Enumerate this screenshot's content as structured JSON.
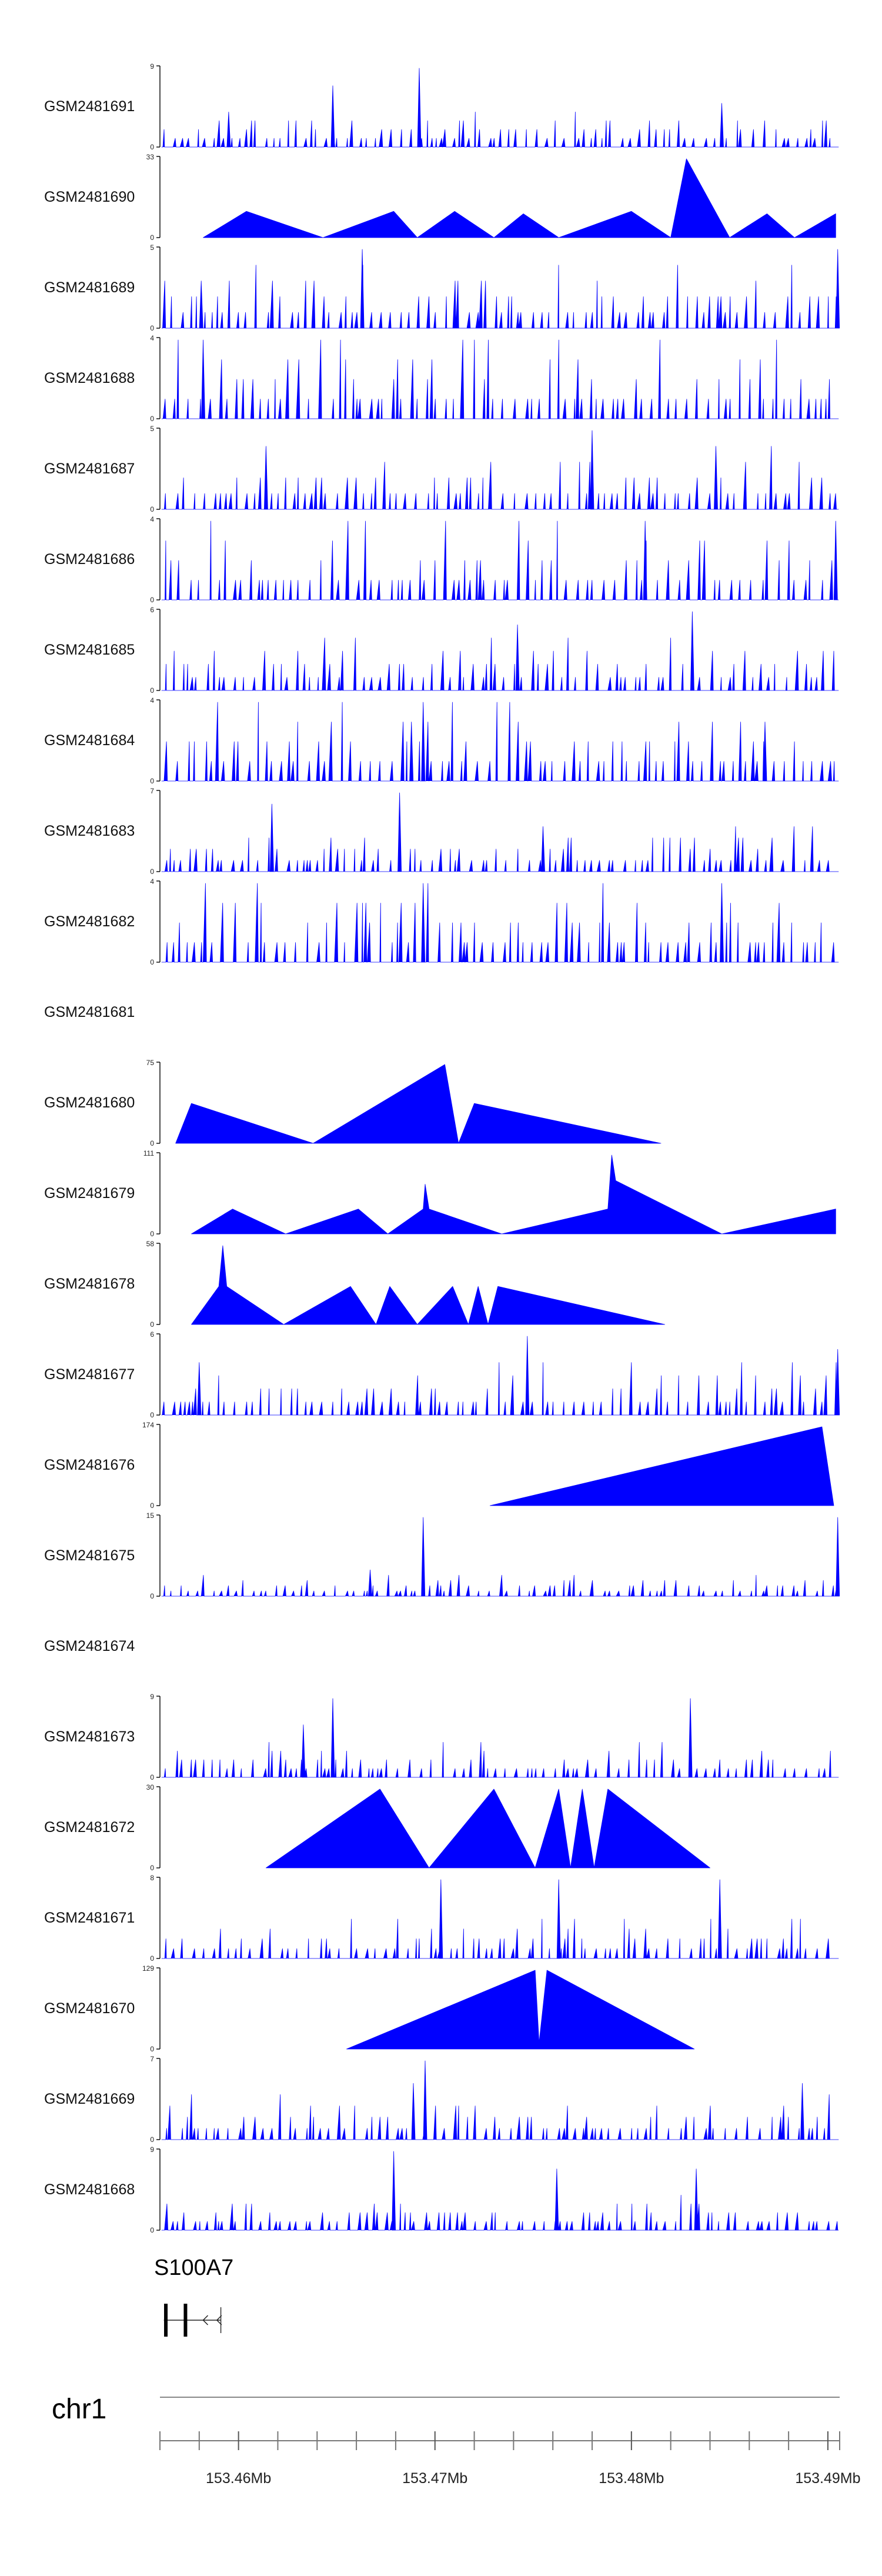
{
  "chart_data": {
    "type": "area",
    "title": "",
    "region": {
      "chromosome": "chr1",
      "start": 153456000,
      "end": 153490600,
      "unit": "bp"
    },
    "fill_color": "#0000ff",
    "tracks": [
      {
        "name": "GSM2481691",
        "ymax": "9",
        "ymin": "0",
        "ymax_value": 9,
        "pattern": "spiky",
        "peaks": [
          {
            "pos": 153469200,
            "value": 9
          },
          {
            "pos": 153464800,
            "value": 7
          },
          {
            "pos": 153459500,
            "value": 4
          },
          {
            "pos": 153484600,
            "value": 5
          }
        ]
      },
      {
        "name": "GSM2481690",
        "ymax": "33",
        "ymin": "0",
        "ymax_value": 33,
        "pattern": "triangles",
        "peaks": [
          {
            "pos": 153458200,
            "value": 0
          },
          {
            "pos": 153460400,
            "value": 11
          },
          {
            "pos": 153464300,
            "value": 0
          },
          {
            "pos": 153467900,
            "value": 11
          },
          {
            "pos": 153469100,
            "value": 0
          },
          {
            "pos": 153471000,
            "value": 11
          },
          {
            "pos": 153473000,
            "value": 0
          },
          {
            "pos": 153474500,
            "value": 10
          },
          {
            "pos": 153476300,
            "value": 0
          },
          {
            "pos": 153480000,
            "value": 11
          },
          {
            "pos": 153482000,
            "value": 0
          },
          {
            "pos": 153482800,
            "value": 33
          },
          {
            "pos": 153485000,
            "value": 0
          },
          {
            "pos": 153486900,
            "value": 10
          },
          {
            "pos": 153488300,
            "value": 0
          },
          {
            "pos": 153490400,
            "value": 10
          }
        ]
      },
      {
        "name": "GSM2481689",
        "ymax": "5",
        "ymin": "0",
        "ymax_value": 5,
        "pattern": "spiky",
        "peaks": [
          {
            "pos": 153466300,
            "value": 5
          },
          {
            "pos": 153490500,
            "value": 5
          },
          {
            "pos": 153458100,
            "value": 3
          }
        ]
      },
      {
        "name": "GSM2481688",
        "ymax": "4",
        "ymin": "0",
        "ymax_value": 4,
        "pattern": "spiky",
        "peaks": [
          {
            "pos": 153458200,
            "value": 4
          }
        ]
      },
      {
        "name": "GSM2481687",
        "ymax": "5",
        "ymin": "0",
        "ymax_value": 5,
        "pattern": "spiky",
        "peaks": [
          {
            "pos": 153478000,
            "value": 5
          },
          {
            "pos": 153461400,
            "value": 4
          },
          {
            "pos": 153484300,
            "value": 4
          }
        ]
      },
      {
        "name": "GSM2481686",
        "ymax": "4",
        "ymin": "0",
        "ymax_value": 4,
        "pattern": "spiky",
        "peaks": [
          {
            "pos": 153480700,
            "value": 4
          },
          {
            "pos": 153490400,
            "value": 4
          }
        ]
      },
      {
        "name": "GSM2481685",
        "ymax": "6",
        "ymin": "0",
        "ymax_value": 6,
        "pattern": "spiky",
        "peaks": [
          {
            "pos": 153483100,
            "value": 6
          },
          {
            "pos": 153474200,
            "value": 5
          }
        ]
      },
      {
        "name": "GSM2481684",
        "ymax": "4",
        "ymin": "0",
        "ymax_value": 4,
        "pattern": "spiky",
        "peaks": [
          {
            "pos": 153469400,
            "value": 4
          },
          {
            "pos": 153468800,
            "value": 3
          },
          {
            "pos": 153486800,
            "value": 3
          }
        ]
      },
      {
        "name": "GSM2481683",
        "ymax": "7",
        "ymin": "0",
        "ymax_value": 7,
        "pattern": "spiky",
        "peaks": [
          {
            "pos": 153461700,
            "value": 6
          },
          {
            "pos": 153468200,
            "value": 7
          },
          {
            "pos": 153475500,
            "value": 4
          }
        ]
      },
      {
        "name": "GSM2481682",
        "ymax": "4",
        "ymin": "0",
        "ymax_value": 4,
        "pattern": "spiky",
        "peaks": [
          {
            "pos": 153469400,
            "value": 4
          },
          {
            "pos": 153484600,
            "value": 4
          }
        ]
      },
      {
        "name": "GSM2481681",
        "ymax": "",
        "ymin": "",
        "ymax_value": 0,
        "pattern": "empty",
        "peaks": []
      },
      {
        "name": "GSM2481680",
        "ymax": "75",
        "ymin": "0",
        "ymax_value": 75,
        "pattern": "triangles",
        "peaks": [
          {
            "pos": 153456800,
            "value": 0
          },
          {
            "pos": 153457600,
            "value": 38
          },
          {
            "pos": 153463800,
            "value": 0
          },
          {
            "pos": 153470500,
            "value": 75
          },
          {
            "pos": 153471200,
            "value": 0
          },
          {
            "pos": 153472000,
            "value": 38
          },
          {
            "pos": 153481500,
            "value": 0
          }
        ]
      },
      {
        "name": "GSM2481679",
        "ymax": "111",
        "ymin": "0",
        "ymax_value": 111,
        "pattern": "triangles",
        "peaks": [
          {
            "pos": 153457600,
            "value": 0
          },
          {
            "pos": 153459700,
            "value": 35
          },
          {
            "pos": 153462400,
            "value": 0
          },
          {
            "pos": 153466100,
            "value": 35
          },
          {
            "pos": 153467600,
            "value": 0
          },
          {
            "pos": 153469400,
            "value": 35
          },
          {
            "pos": 153469500,
            "value": 70
          },
          {
            "pos": 153469700,
            "value": 35
          },
          {
            "pos": 153473400,
            "value": 0
          },
          {
            "pos": 153478800,
            "value": 35
          },
          {
            "pos": 153479000,
            "value": 111
          },
          {
            "pos": 153479200,
            "value": 75
          },
          {
            "pos": 153484600,
            "value": 0
          },
          {
            "pos": 153490400,
            "value": 35
          }
        ]
      },
      {
        "name": "GSM2481678",
        "ymax": "58",
        "ymin": "0",
        "ymax_value": 58,
        "pattern": "triangles",
        "peaks": [
          {
            "pos": 153457600,
            "value": 0
          },
          {
            "pos": 153459000,
            "value": 28
          },
          {
            "pos": 153459200,
            "value": 58
          },
          {
            "pos": 153459400,
            "value": 28
          },
          {
            "pos": 153462300,
            "value": 0
          },
          {
            "pos": 153465700,
            "value": 28
          },
          {
            "pos": 153467000,
            "value": 0
          },
          {
            "pos": 153467700,
            "value": 28
          },
          {
            "pos": 153469100,
            "value": 0
          },
          {
            "pos": 153470900,
            "value": 28
          },
          {
            "pos": 153471700,
            "value": 0
          },
          {
            "pos": 153472200,
            "value": 28
          },
          {
            "pos": 153472700,
            "value": 0
          },
          {
            "pos": 153473200,
            "value": 28
          },
          {
            "pos": 153481700,
            "value": 0
          }
        ]
      },
      {
        "name": "GSM2481677",
        "ymax": "6",
        "ymin": "0",
        "ymax_value": 6,
        "pattern": "spiky",
        "peaks": [
          {
            "pos": 153474700,
            "value": 6
          },
          {
            "pos": 153490500,
            "value": 5
          },
          {
            "pos": 153458000,
            "value": 4
          }
        ]
      },
      {
        "name": "GSM2481676",
        "ymax": "174",
        "ymin": "0",
        "ymax_value": 174,
        "pattern": "triangles",
        "peaks": [
          {
            "pos": 153472800,
            "value": 0
          },
          {
            "pos": 153489700,
            "value": 174
          },
          {
            "pos": 153490300,
            "value": 0
          }
        ]
      },
      {
        "name": "GSM2481675",
        "ymax": "15",
        "ymin": "0",
        "ymax_value": 15,
        "pattern": "spiky",
        "peaks": [
          {
            "pos": 153469400,
            "value": 15
          },
          {
            "pos": 153490500,
            "value": 15
          },
          {
            "pos": 153466700,
            "value": 5
          }
        ]
      },
      {
        "name": "GSM2481674",
        "ymax": "",
        "ymin": "",
        "ymax_value": 0,
        "pattern": "empty",
        "peaks": []
      },
      {
        "name": "GSM2481673",
        "ymax": "9",
        "ymin": "0",
        "ymax_value": 9,
        "pattern": "spiky",
        "peaks": [
          {
            "pos": 153464800,
            "value": 9
          },
          {
            "pos": 153483000,
            "value": 9
          },
          {
            "pos": 153463300,
            "value": 6
          }
        ]
      },
      {
        "name": "GSM2481672",
        "ymax": "30",
        "ymin": "0",
        "ymax_value": 30,
        "pattern": "triangles",
        "peaks": [
          {
            "pos": 153461400,
            "value": 0
          },
          {
            "pos": 153467200,
            "value": 30
          },
          {
            "pos": 153469700,
            "value": 0
          },
          {
            "pos": 153473000,
            "value": 30
          },
          {
            "pos": 153475100,
            "value": 0
          },
          {
            "pos": 153476300,
            "value": 30
          },
          {
            "pos": 153476900,
            "value": 0
          },
          {
            "pos": 153477500,
            "value": 30
          },
          {
            "pos": 153478100,
            "value": 0
          },
          {
            "pos": 153478800,
            "value": 30
          },
          {
            "pos": 153484000,
            "value": 0
          }
        ]
      },
      {
        "name": "GSM2481671",
        "ymax": "8",
        "ymin": "0",
        "ymax_value": 8,
        "pattern": "spiky",
        "peaks": [
          {
            "pos": 153470300,
            "value": 8
          },
          {
            "pos": 153476300,
            "value": 8
          },
          {
            "pos": 153484500,
            "value": 8
          }
        ]
      },
      {
        "name": "GSM2481670",
        "ymax": "129",
        "ymin": "0",
        "ymax_value": 129,
        "pattern": "triangles",
        "peaks": [
          {
            "pos": 153465500,
            "value": 0
          },
          {
            "pos": 153475100,
            "value": 129
          },
          {
            "pos": 153475300,
            "value": 10
          },
          {
            "pos": 153475700,
            "value": 129
          },
          {
            "pos": 153483200,
            "value": 0
          }
        ]
      },
      {
        "name": "GSM2481669",
        "ymax": "7",
        "ymin": "0",
        "ymax_value": 7,
        "pattern": "spiky",
        "peaks": [
          {
            "pos": 153469500,
            "value": 7
          },
          {
            "pos": 153468900,
            "value": 5
          },
          {
            "pos": 153488700,
            "value": 5
          }
        ]
      },
      {
        "name": "GSM2481668",
        "ymax": "9",
        "ymin": "0",
        "ymax_value": 9,
        "pattern": "spiky",
        "peaks": [
          {
            "pos": 153467900,
            "value": 9
          },
          {
            "pos": 153483300,
            "value": 7
          },
          {
            "pos": 153476200,
            "value": 7
          }
        ]
      }
    ],
    "gene": {
      "name": "S100A7",
      "label_text": "S100A7",
      "strand": "-",
      "start": 153456200,
      "end": 153459100,
      "exons": [
        {
          "start": 153456300,
          "end": 153456400
        },
        {
          "start": 153457300,
          "end": 153457400
        }
      ]
    },
    "chromosome_label": "chr1",
    "x_axis": {
      "ticks_major": [
        {
          "pos": 153460000,
          "label": "153.46Mb"
        },
        {
          "pos": 153470000,
          "label": "153.47Mb"
        },
        {
          "pos": 153480000,
          "label": "153.48Mb"
        },
        {
          "pos": 153490000,
          "label": "153.49Mb"
        }
      ],
      "ticks_minor": [
        153458000,
        153462000,
        153464000,
        153466000,
        153468000,
        153472000,
        153474000,
        153476000,
        153478000,
        153482000,
        153484000,
        153486000,
        153488000
      ]
    }
  }
}
